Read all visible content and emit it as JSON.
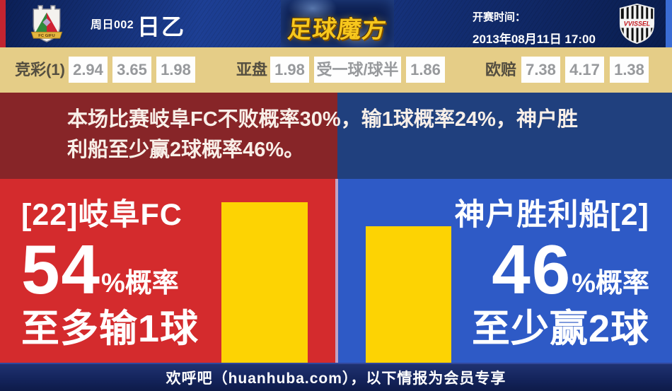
{
  "header": {
    "match_number": "周日002",
    "league": "日乙",
    "logo_text": "足球魔方",
    "kickoff_label": "开赛时间：",
    "kickoff_value": "2013年08月11日 17:00",
    "home_crest_caption": "FC GIFU",
    "away_crest_caption": "VVISSEL"
  },
  "odds_bar": {
    "jingcai_label": "竞彩(1)",
    "jingcai": [
      "2.94",
      "3.65",
      "1.98"
    ],
    "yapan_label": "亚盘",
    "yapan": [
      "1.98",
      "受一球/球半",
      "1.86"
    ],
    "oupei_label": "欧赔",
    "oupei": [
      "7.38",
      "4.17",
      "1.38"
    ]
  },
  "summary": {
    "line1": "本场比赛岐阜FC不败概率30%，输1球概率24%，神户胜",
    "line2": "利船至少赢2球概率46%。"
  },
  "home_panel": {
    "team": "[22]岐阜FC",
    "probability": "54",
    "suffix": "%概率",
    "outcome": "至多输1球"
  },
  "away_panel": {
    "team": "神户胜利船[2]",
    "probability": "46",
    "suffix": "%概率",
    "outcome": "至少赢2球"
  },
  "footer": {
    "text": "欢呼吧（huanhuba.com），以下情报为会员专享"
  },
  "chart_data": {
    "type": "bar",
    "categories": [
      "岐阜FC 至多输1球",
      "神户胜利船[2] 至少赢2球"
    ],
    "values": [
      54,
      46
    ],
    "unit": "%",
    "legend_position": "none",
    "grid": false,
    "bar_color": "#fdd303"
  },
  "colors": {
    "header_blue": "#16337e",
    "left_edge_red": "#c32430",
    "right_edge_blue": "#3a6cd4",
    "odds_bg": "#e5cd87",
    "odds_value_gray": "#97999c",
    "banner_red": "#872528",
    "banner_blue": "#20407e",
    "panel_red": "#d42b2d",
    "panel_blue": "#2e5ac6",
    "bar_yellow": "#fdd303",
    "logo_gold": "#f7c71d",
    "footer_navy": "#14245c"
  }
}
